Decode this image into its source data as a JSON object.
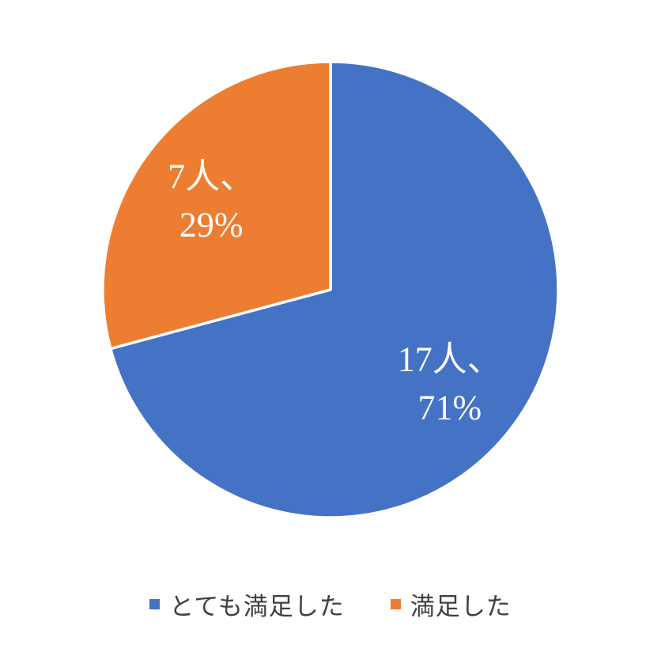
{
  "page": {
    "background": "#FFFFFF"
  },
  "chart_data": {
    "type": "pie",
    "title": "",
    "categories": [
      "とても満足した",
      "満足した"
    ],
    "values": [
      17,
      7
    ],
    "unit": "人",
    "percent_labels": [
      71,
      29
    ],
    "colors": [
      "#4472C4",
      "#ED7D31"
    ],
    "data_labels": [
      [
        "17人、",
        "71%"
      ],
      [
        "7人、",
        "29%"
      ]
    ],
    "data_label_color": "#FFFFFF",
    "slice_border_color": "#FFFFFF",
    "start_angle_deg": 0,
    "direction": "clockwise",
    "legend_position": "bottom"
  },
  "legend": {
    "items": [
      {
        "label": "とても満足した",
        "color": "#4472C4"
      },
      {
        "label": "満足した",
        "color": "#ED7D31"
      }
    ],
    "text_color": "#404040"
  }
}
